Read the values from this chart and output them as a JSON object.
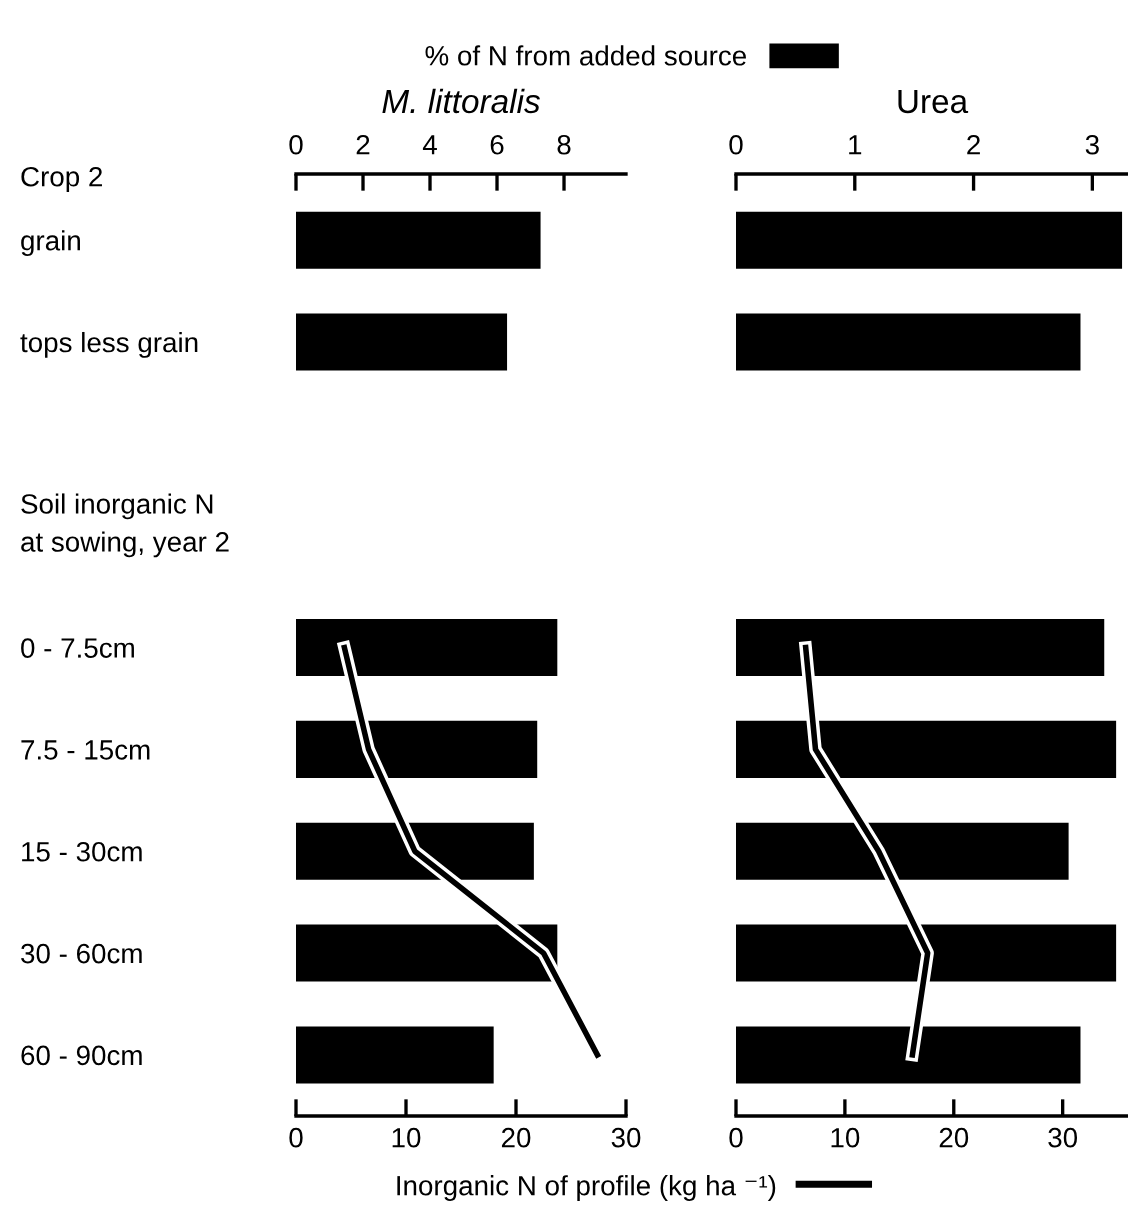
{
  "chart_data": [
    {
      "type": "bar",
      "orientation": "horizontal",
      "title": "M. littoralis",
      "categories": [
        "grain",
        "tops less grain",
        null,
        null,
        "0 - 7.5cm",
        "7.5 - 15cm",
        "15 - 30cm",
        "30 - 60cm",
        "60 - 90cm"
      ],
      "annotations": [
        "Crop 2",
        "Soil inorganic N\nat sowing, year 2"
      ],
      "series": [
        {
          "name": "% of N from added source",
          "color": "#000000",
          "values": [
            7.3,
            6.3,
            null,
            null,
            7.8,
            7.2,
            7.1,
            7.8,
            5.9
          ]
        },
        {
          "type": "line",
          "axis": "x2",
          "color": "#000000",
          "values": [
            null,
            null,
            null,
            null,
            4.4,
            6.6,
            10.8,
            22.5,
            27.4
          ]
        }
      ],
      "xlim": [
        0,
        9.85
      ],
      "xticks": [
        0,
        2,
        4,
        6,
        8
      ],
      "x2lim": [
        0,
        30
      ],
      "x2ticks": [
        0,
        10,
        20,
        30
      ],
      "legend": "top"
    },
    {
      "type": "bar",
      "orientation": "horizontal",
      "title": "Urea",
      "categories": [
        null,
        null,
        null,
        null,
        null,
        null,
        null,
        null,
        null
      ],
      "series": [
        {
          "color": "#000000",
          "values": [
            3.25,
            2.9,
            null,
            null,
            3.1,
            3.2,
            2.8,
            3.2,
            2.9
          ]
        },
        {
          "type": "line",
          "axis": "x2",
          "name": "Inorganic N of profile (kg ha ⁻¹)",
          "color": "#000000",
          "values": [
            null,
            null,
            null,
            null,
            6.4,
            7.3,
            13.1,
            17.6,
            16.2
          ]
        }
      ],
      "xlim": [
        0,
        3.3
      ],
      "xticks": [
        0,
        1,
        2,
        3
      ],
      "x2lim": [
        0,
        36
      ],
      "x2ticks": [
        0,
        10,
        20,
        30
      ],
      "legend": "bottom"
    }
  ]
}
